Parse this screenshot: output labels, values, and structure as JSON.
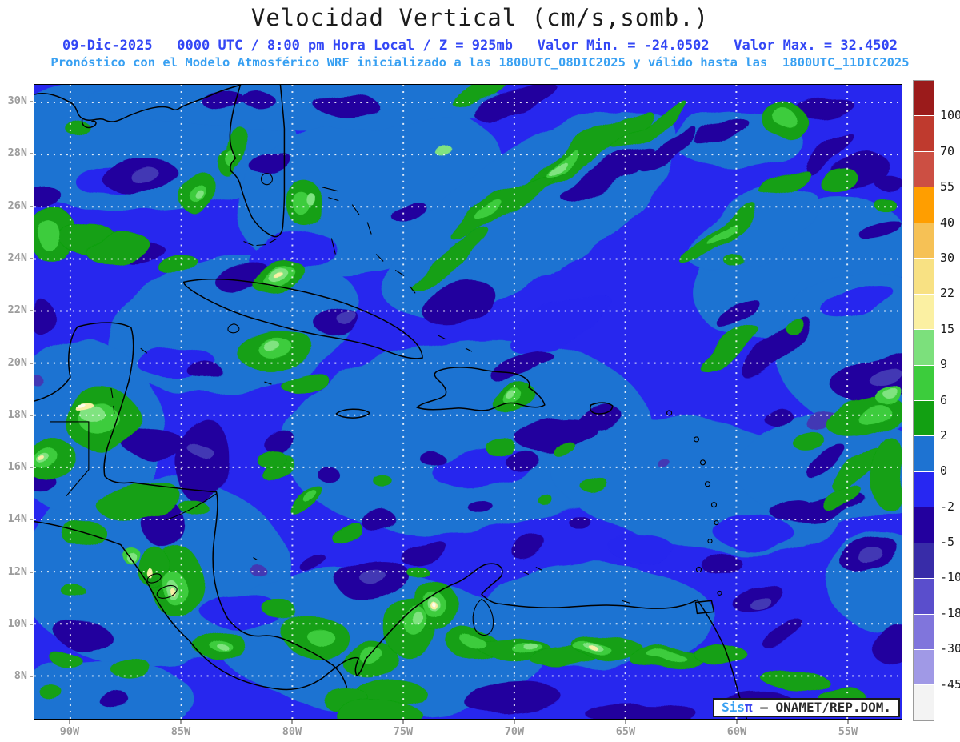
{
  "header": {
    "title": "Velocidad Vertical (cm/s,somb.)",
    "subtitle1": "09-Dic-2025   0000 UTC / 8:00 pm Hora Local / Z = 925mb   Valor Min. = -24.0502   Valor Max. = 32.4502",
    "subtitle2": "Pronóstico con el Modelo Atmosférico WRF inicializado a las 1800UTC_08DIC2025 y válido hasta las  1800UTC_11DIC2025"
  },
  "axes": {
    "lat": [
      "30N",
      "28N",
      "26N",
      "24N",
      "22N",
      "20N",
      "18N",
      "16N",
      "14N",
      "12N",
      "10N",
      "8N"
    ],
    "lon": [
      "90W",
      "85W",
      "80W",
      "75W",
      "70W",
      "65W",
      "60W",
      "55W"
    ]
  },
  "colorbar": {
    "labels": [
      "100",
      "70",
      "55",
      "40",
      "30",
      "22",
      "15",
      "9",
      "6",
      "2",
      "0",
      "-2",
      "-5",
      "-10",
      "-18",
      "-30",
      "-45"
    ],
    "colors": [
      "#9b1b1b",
      "#bf3a2e",
      "#cc4f43",
      "#ff9e00",
      "#f6c155",
      "#f8e183",
      "#fbf0a2",
      "#7ce07c",
      "#3ccc3c",
      "#12a012",
      "#1e73d2",
      "#2727f2",
      "#23009e",
      "#382ca8",
      "#5a4ecc",
      "#8075dc",
      "#a099e6",
      "#f3f3f3"
    ]
  },
  "attribution": {
    "sis": "Sis",
    "pi": "π",
    "rest": " – ONAMET/REP.DOM."
  },
  "palette": {
    "sea_pos": "#1e73d2",
    "sea_neg": "#2727ee",
    "navy": "#23009e",
    "violet": "#4338b4",
    "green1": "#12a012",
    "green2": "#3ccc3c",
    "green3": "#80e380",
    "yellow": "#f8f0a4",
    "core_white": "#fdfcec",
    "coast": "#000000",
    "grid": "#ffffff",
    "frame": "#000000",
    "title": "#1c1c1c",
    "subtitle1": "#3347f5",
    "subtitle2": "#38a0f2",
    "axis_label": "#9c9c9c",
    "cbar_label": "#1a1a1a",
    "attrib_sis": "#38a0f2",
    "attrib_pi": "#3c44ef",
    "attrib_text": "#2b2b2b"
  },
  "chart_data": {
    "type": "heatmap",
    "title": "Velocidad Vertical (cm/s,somb.)",
    "variable": "Velocidad Vertical",
    "units": "cm/s",
    "level": "925mb",
    "valid_time": "09-Dic-2025 0000 UTC / 8:00 pm Hora Local",
    "model": "WRF",
    "initialized": "1800UTC_08DIC2025",
    "valid_until": "1800UTC_11DIC2025",
    "value_min": -24.0502,
    "value_max": 32.4502,
    "x_ticks": [
      "90W",
      "85W",
      "80W",
      "75W",
      "70W",
      "65W",
      "60W",
      "55W"
    ],
    "y_ticks": [
      "30N",
      "28N",
      "26N",
      "24N",
      "22N",
      "20N",
      "18N",
      "16N",
      "14N",
      "12N",
      "10N",
      "8N"
    ],
    "colorbar_levels": [
      100,
      70,
      55,
      40,
      30,
      22,
      15,
      9,
      6,
      2,
      0,
      -2,
      -5,
      -10,
      -18,
      -30,
      -45
    ],
    "colorbar_colors": [
      "#9b1b1b",
      "#bf3a2e",
      "#cc4f43",
      "#ff9e00",
      "#f6c155",
      "#f8e183",
      "#fbf0a2",
      "#7ce07c",
      "#3ccc3c",
      "#12a012",
      "#1e73d2",
      "#2727f2",
      "#23009e",
      "#382ca8",
      "#5a4ecc",
      "#8075dc",
      "#a099e6",
      "#f3f3f3"
    ],
    "legend_position": "right",
    "grid": true,
    "grid_style": "white dotted graticule every 2° lat / 5° lon",
    "region": "Gulf of Mexico / Caribbean / Central America"
  }
}
